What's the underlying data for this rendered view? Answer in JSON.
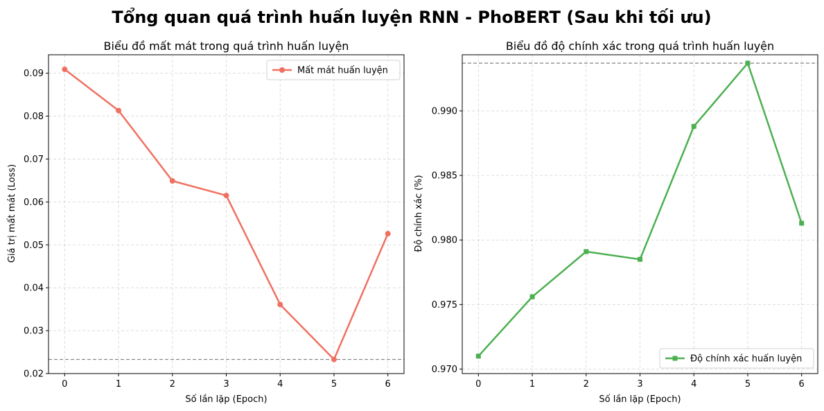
{
  "figure_title": "Tổng quan quá trình huấn luyện RNN - PhoBERT (Sau khi tối ưu)",
  "chart_data": [
    {
      "type": "line",
      "title": "Biểu đồ mất mát trong quá trình huấn luyện",
      "xlabel": "Số lần lặp (Epoch)",
      "ylabel": "Giá trị mất mát (Loss)",
      "x": [
        0,
        1,
        2,
        3,
        4,
        5,
        6
      ],
      "xticks": [
        "0",
        "1",
        "2",
        "3",
        "4",
        "5",
        "6"
      ],
      "yticks": [
        "0.02",
        "0.03",
        "0.04",
        "0.05",
        "0.06",
        "0.07",
        "0.08",
        "0.09"
      ],
      "ylim": [
        0.02,
        0.0943
      ],
      "xlim": [
        -0.3,
        6.3
      ],
      "grid": true,
      "legend_position": "top-right",
      "reference_line": 0.0233,
      "series": [
        {
          "name": "Mất mát huấn luyện",
          "color": "#f07060",
          "marker": "circle",
          "values": [
            0.0909,
            0.0813,
            0.0649,
            0.0615,
            0.0361,
            0.0233,
            0.0526
          ]
        }
      ]
    },
    {
      "type": "line",
      "title": "Biểu đồ độ chính xác trong quá trình huấn luyện",
      "xlabel": "Số lần lặp (Epoch)",
      "ylabel": "Độ chính xác (%)",
      "x": [
        0,
        1,
        2,
        3,
        4,
        5,
        6
      ],
      "xticks": [
        "0",
        "1",
        "2",
        "3",
        "4",
        "5",
        "6"
      ],
      "yticks": [
        "0.970",
        "0.975",
        "0.980",
        "0.985",
        "0.990"
      ],
      "ylim": [
        0.96965,
        0.99435
      ],
      "xlim": [
        -0.3,
        6.3
      ],
      "grid": true,
      "legend_position": "bottom-right",
      "reference_line": 0.9937,
      "series": [
        {
          "name": "Độ chính xác huấn luyện",
          "color": "#4caf50",
          "marker": "square",
          "values": [
            0.971,
            0.9756,
            0.9791,
            0.9785,
            0.9888,
            0.9937,
            0.9813
          ]
        }
      ]
    }
  ]
}
